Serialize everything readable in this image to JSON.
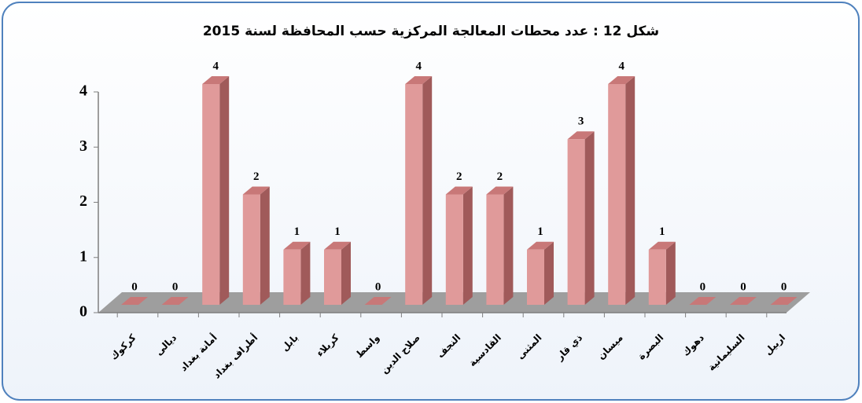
{
  "chart_data": {
    "type": "bar3d",
    "title": "شكل 12 : عدد محطات المعالجة المركزية حسب المحافظة لسنة 2015",
    "categories": [
      "كركوك",
      "ديالى",
      "أمانة بغداد",
      "أطراف بغداد",
      "بابل",
      "كربلاء",
      "واسط",
      "صلاح الدين",
      "النجف",
      "القادسية",
      "المثنى",
      "ذي قار",
      "ميسان",
      "البصرة",
      "دهوك",
      "السليمانية",
      "اربيل"
    ],
    "values": [
      0,
      0,
      4,
      2,
      1,
      1,
      0,
      4,
      2,
      2,
      1,
      3,
      4,
      1,
      0,
      0,
      0
    ],
    "color": "#e09a9a",
    "ylim": [
      0,
      4
    ],
    "yticks": [
      0,
      1,
      2,
      3,
      4
    ],
    "grid": false
  }
}
